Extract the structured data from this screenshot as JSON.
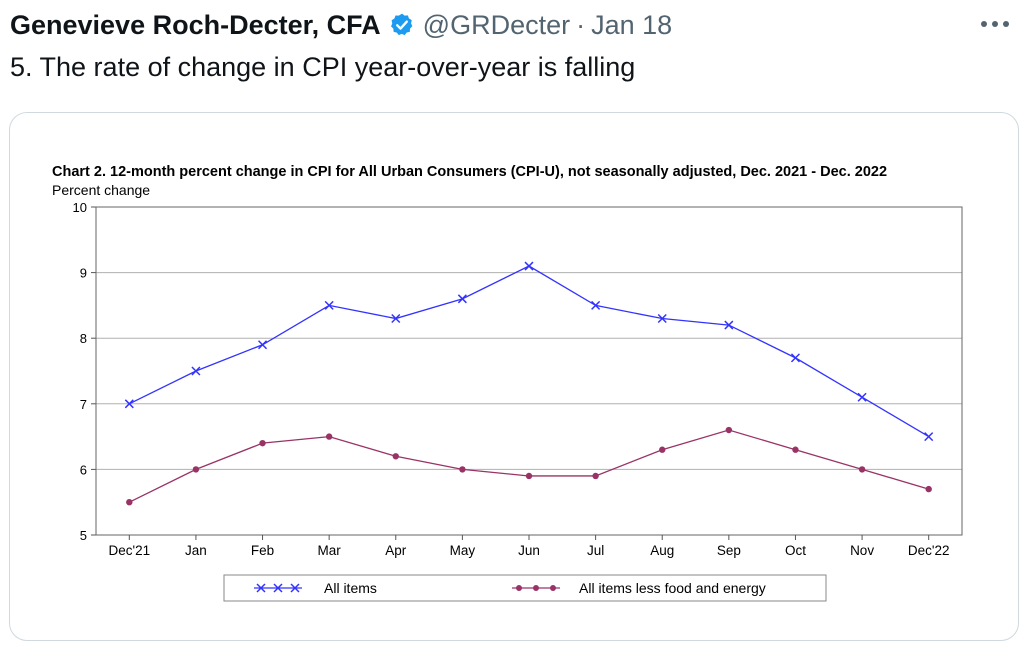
{
  "tweet": {
    "author_name": "Genevieve Roch-Decter, CFA",
    "handle": "@GRDecter",
    "separator": "·",
    "date": "Jan 18",
    "text": "5. The rate of change in CPI year-over-year is falling",
    "more_label": "More",
    "verified_icon": "verified-badge-icon",
    "colors": {
      "name": "#0f1419",
      "secondary": "#536471",
      "verified": "#1d9bf0",
      "border": "#cfd9de"
    }
  },
  "chart_data": {
    "type": "line",
    "title": "Chart 2. 12-month percent change in CPI for All Urban Consumers (CPI-U), not seasonally adjusted, Dec. 2021 - Dec. 2022",
    "ylabel": "Percent change",
    "xlabel": "",
    "categories": [
      "Dec'21",
      "Jan",
      "Feb",
      "Mar",
      "Apr",
      "May",
      "Jun",
      "Jul",
      "Aug",
      "Sep",
      "Oct",
      "Nov",
      "Dec'22"
    ],
    "ylim": [
      5,
      10
    ],
    "yticks": [
      5,
      6,
      7,
      8,
      9,
      10
    ],
    "grid": true,
    "legend_position": "bottom-center",
    "series": [
      {
        "name": "All items",
        "values": [
          7.0,
          7.5,
          7.9,
          8.5,
          8.3,
          8.6,
          9.1,
          8.5,
          8.3,
          8.2,
          7.7,
          7.1,
          6.5
        ],
        "color": "#3333ff",
        "marker": "x"
      },
      {
        "name": "All items less food and energy",
        "values": [
          5.5,
          6.0,
          6.4,
          6.5,
          6.2,
          6.0,
          5.9,
          5.9,
          6.3,
          6.6,
          6.3,
          6.0,
          5.7
        ],
        "color": "#993366",
        "marker": "circle"
      }
    ]
  }
}
